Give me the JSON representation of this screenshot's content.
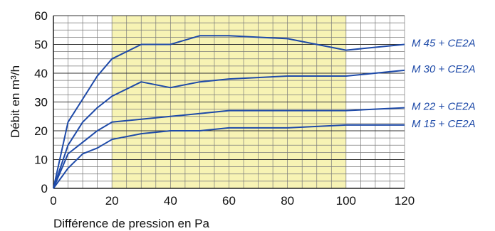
{
  "chart_data": {
    "type": "line",
    "xlabel": "Différence de pression en Pa",
    "ylabel": "Débit en m³/h",
    "xlim": [
      0,
      120
    ],
    "ylim": [
      0,
      60
    ],
    "x_ticks": [
      0,
      20,
      40,
      60,
      80,
      100,
      120
    ],
    "y_ticks": [
      0,
      10,
      20,
      30,
      40,
      50,
      60
    ],
    "grid": true,
    "highlight_x_range": [
      20,
      100
    ],
    "highlight_color": "#f7f3b4",
    "line_color": "#1e4aa8",
    "series": [
      {
        "name": "M 45 + CE2A",
        "points": [
          [
            0,
            0
          ],
          [
            5,
            23
          ],
          [
            10,
            31
          ],
          [
            15,
            39
          ],
          [
            20,
            45
          ],
          [
            30,
            50
          ],
          [
            40,
            50
          ],
          [
            50,
            53
          ],
          [
            60,
            53
          ],
          [
            80,
            52
          ],
          [
            100,
            48
          ],
          [
            120,
            50
          ]
        ]
      },
      {
        "name": "M 30 + CE2A",
        "points": [
          [
            0,
            0
          ],
          [
            5,
            15
          ],
          [
            10,
            23
          ],
          [
            15,
            28
          ],
          [
            20,
            32
          ],
          [
            30,
            37
          ],
          [
            40,
            35
          ],
          [
            50,
            37
          ],
          [
            60,
            38
          ],
          [
            80,
            39
          ],
          [
            100,
            39
          ],
          [
            120,
            41
          ]
        ]
      },
      {
        "name": "M 22 + CE2A",
        "points": [
          [
            0,
            0
          ],
          [
            5,
            12
          ],
          [
            10,
            16
          ],
          [
            15,
            20
          ],
          [
            20,
            23
          ],
          [
            30,
            24
          ],
          [
            40,
            25
          ],
          [
            50,
            26
          ],
          [
            60,
            27
          ],
          [
            80,
            27
          ],
          [
            100,
            27
          ],
          [
            120,
            28
          ]
        ]
      },
      {
        "name": "M 15 + CE2A",
        "points": [
          [
            0,
            0
          ],
          [
            5,
            7
          ],
          [
            10,
            12
          ],
          [
            15,
            14
          ],
          [
            20,
            17
          ],
          [
            30,
            19
          ],
          [
            40,
            20
          ],
          [
            50,
            20
          ],
          [
            60,
            21
          ],
          [
            80,
            21
          ],
          [
            100,
            22
          ],
          [
            120,
            22
          ]
        ]
      }
    ]
  }
}
